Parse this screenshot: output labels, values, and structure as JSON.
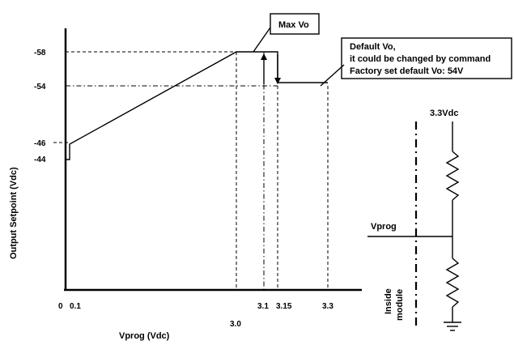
{
  "graph": {
    "y_axis_label": "Output Setpoint (Vdc)",
    "x_axis_label": "Vprog (Vdc)",
    "y_ticks": [
      "-58",
      "-54",
      "-46",
      "-44"
    ],
    "x_ticks": [
      "0",
      "0.1",
      "3.0",
      "3.1",
      "3.15",
      "3.3"
    ]
  },
  "chart_data": {
    "type": "line",
    "xlabel": "Vprog (Vdc)",
    "ylabel": "Output Setpoint (Vdc)",
    "xlim": [
      0,
      3.3
    ],
    "series": [
      {
        "x": [
          0.1,
          0.1,
          3.0,
          3.15,
          3.15,
          3.3
        ],
        "y": [
          -44,
          -46,
          -58,
          -58,
          -54,
          -54
        ]
      }
    ]
  },
  "callouts": {
    "max_vo": "Max Vo",
    "default_vo_line1": "Default Vo,",
    "default_vo_line2": "it could be changed by command",
    "default_vo_line3": "Factory set default Vo: 54V"
  },
  "schematic": {
    "supply_label": "3.3Vdc",
    "vprog_label": "Vprog",
    "inside_label_line1": "Inside",
    "inside_label_line2": "module"
  }
}
